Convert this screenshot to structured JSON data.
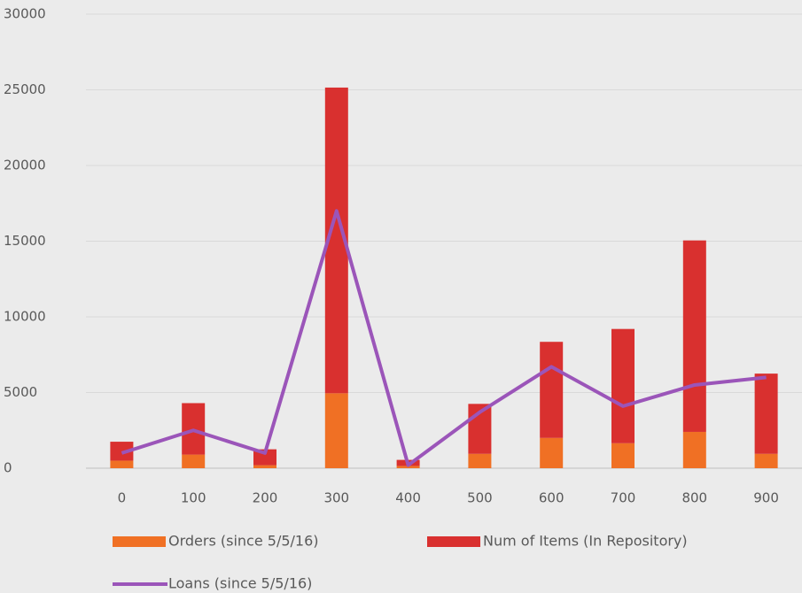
{
  "chart_data": {
    "type": "bar",
    "stacked": true,
    "categories": [
      "0",
      "100",
      "200",
      "300",
      "400",
      "500",
      "600",
      "700",
      "800",
      "900"
    ],
    "series": [
      {
        "name": "Orders (since 5/5/16)",
        "type": "bar",
        "color": "#f07024",
        "values": [
          500,
          900,
          200,
          4950,
          150,
          950,
          2000,
          1650,
          2400,
          950
        ]
      },
      {
        "name": "Num of Items (In Repository)",
        "type": "bar",
        "color": "#d9302f",
        "values": [
          1250,
          3400,
          1050,
          20200,
          400,
          3300,
          6350,
          7550,
          12650,
          5300
        ]
      },
      {
        "name": "Loans (since 5/5/16)",
        "type": "line",
        "color": "#9b55b9",
        "values": [
          1000,
          2500,
          1000,
          17000,
          200,
          3700,
          6700,
          4100,
          5500,
          6000
        ]
      }
    ],
    "ylim": [
      0,
      30000
    ],
    "yticks": [
      0,
      5000,
      10000,
      15000,
      20000,
      25000,
      30000
    ],
    "grid": true,
    "legend": "bottom"
  }
}
